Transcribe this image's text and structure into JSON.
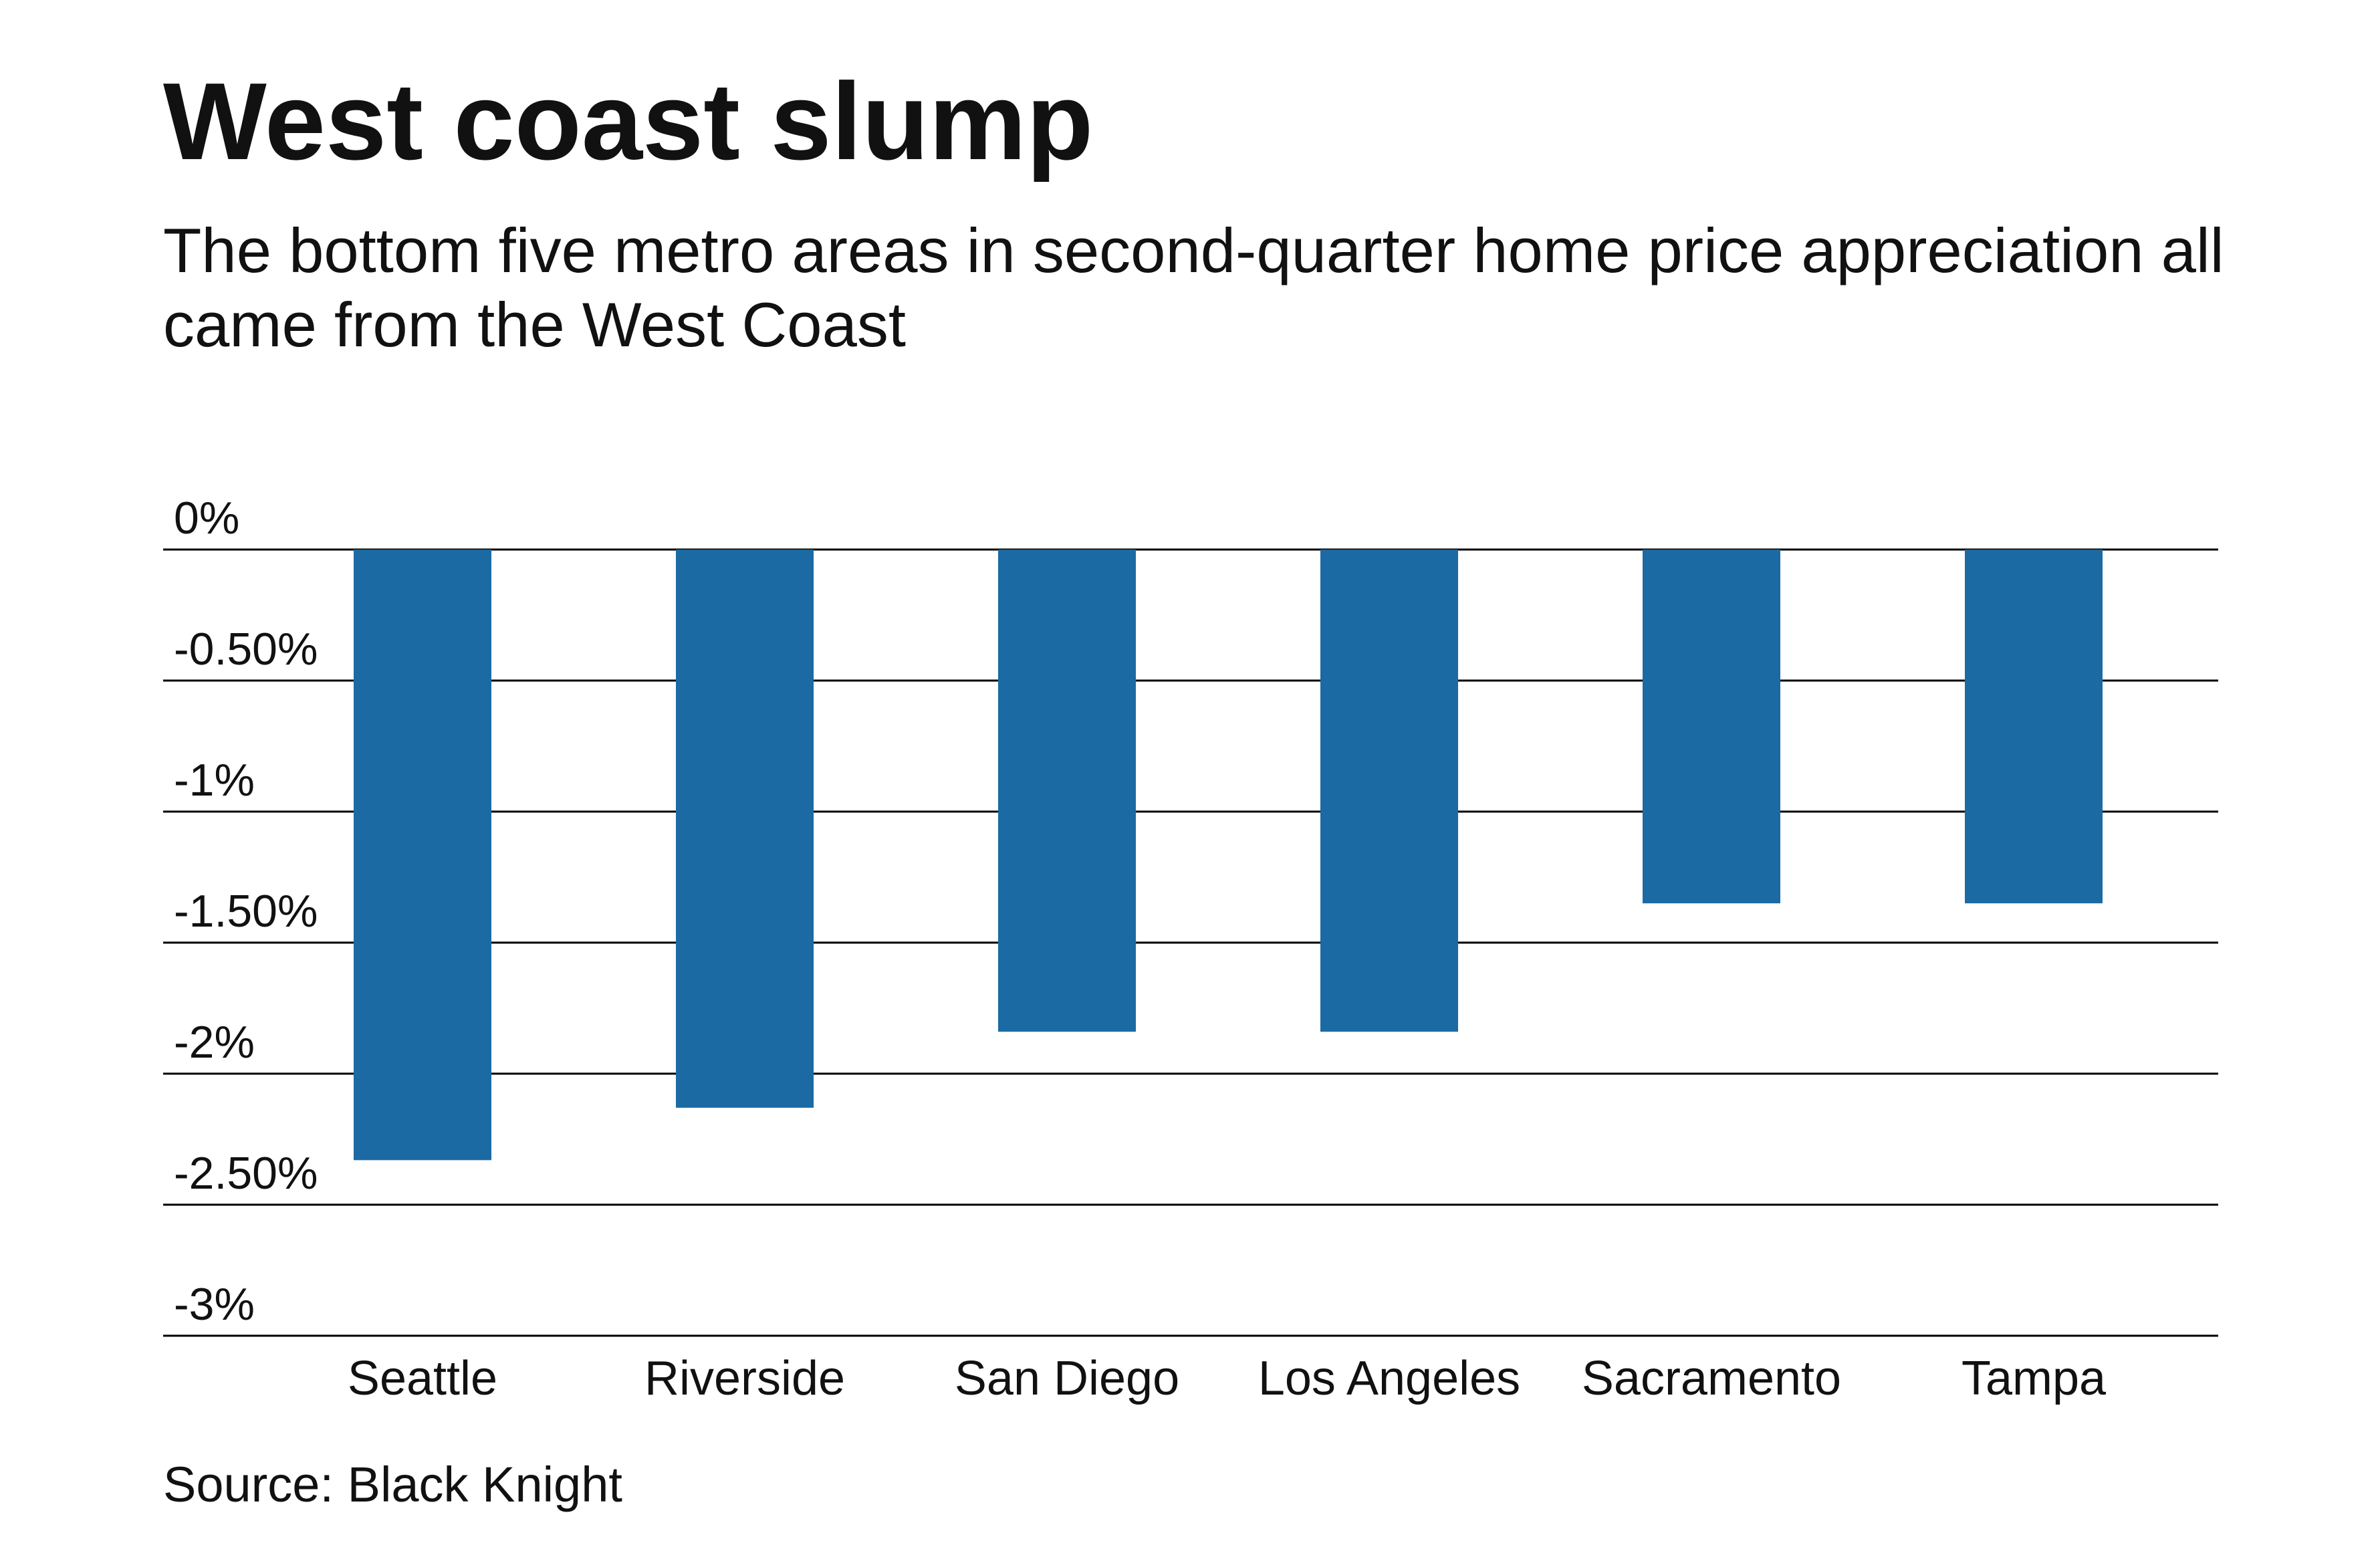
{
  "title": "West coast slump",
  "subtitle": "The bottom five metro areas in second-quarter home price appreciation all came from the West Coast",
  "source": "Source: Black Knight",
  "colors": {
    "bar": "#1b6aa3",
    "gridline": "#000000",
    "text": "#111111"
  },
  "chart_data": {
    "type": "bar",
    "title": "West coast slump",
    "subtitle": "The bottom five metro areas in second-quarter home price appreciation all came from the West Coast",
    "xlabel": "",
    "ylabel": "",
    "categories": [
      "Seattle",
      "Riverside",
      "San Diego",
      "Los Angeles",
      "Sacramento",
      "Tampa"
    ],
    "values": [
      -2.33,
      -2.13,
      -1.84,
      -1.84,
      -1.35,
      -1.35
    ],
    "ylim": [
      -3,
      0
    ],
    "yticks": [
      0,
      -0.5,
      -1,
      -1.5,
      -2,
      -2.5,
      -3
    ],
    "ytick_labels": [
      "0%",
      "-0.50%",
      "-1%",
      "-1.50%",
      "-2%",
      "-2.50%",
      "-3%"
    ],
    "grid": true,
    "legend": "none"
  }
}
